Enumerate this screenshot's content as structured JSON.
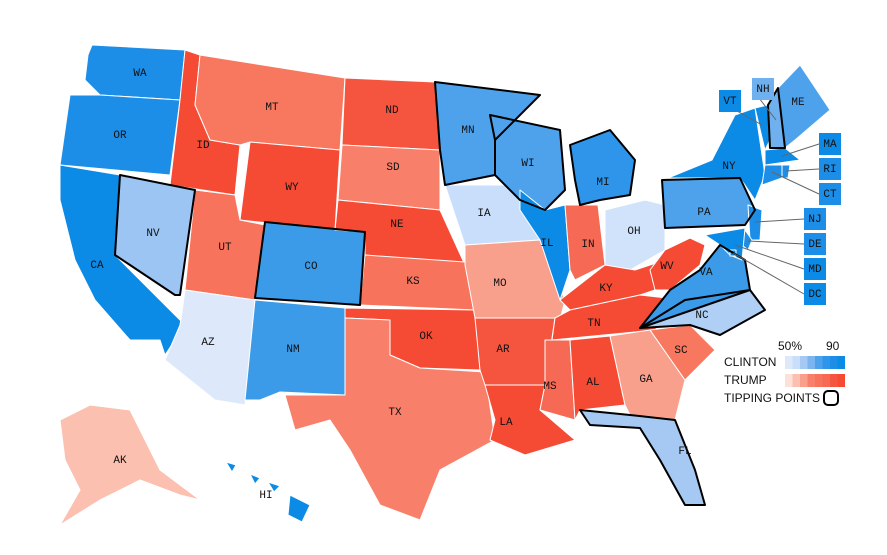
{
  "states": [
    {
      "label": "WA",
      "color": "#1d8ee8",
      "tipping_point": false
    },
    {
      "label": "OR",
      "color": "#1d8ee8",
      "tipping_point": false
    },
    {
      "label": "CA",
      "color": "#0b8ae6",
      "tipping_point": false
    },
    {
      "label": "NV",
      "color": "#9cc5f3",
      "tipping_point": true
    },
    {
      "label": "ID",
      "color": "#f54b35",
      "tipping_point": false
    },
    {
      "label": "MT",
      "color": "#f7775f",
      "tipping_point": false
    },
    {
      "label": "WY",
      "color": "#f54b35",
      "tipping_point": false
    },
    {
      "label": "UT",
      "color": "#f7735c",
      "tipping_point": false
    },
    {
      "label": "CO",
      "color": "#3c9be8",
      "tipping_point": true
    },
    {
      "label": "AZ",
      "color": "#dde9fb",
      "tipping_point": false
    },
    {
      "label": "NM",
      "color": "#3c9be8",
      "tipping_point": false
    },
    {
      "label": "ND",
      "color": "#f5553f",
      "tipping_point": false
    },
    {
      "label": "SD",
      "color": "#f8806a",
      "tipping_point": false
    },
    {
      "label": "NE",
      "color": "#f54b35",
      "tipping_point": false
    },
    {
      "label": "KS",
      "color": "#f7735c",
      "tipping_point": false
    },
    {
      "label": "OK",
      "color": "#f54b35",
      "tipping_point": false
    },
    {
      "label": "TX",
      "color": "#f8806a",
      "tipping_point": false
    },
    {
      "label": "MN",
      "color": "#4ea2ec",
      "tipping_point": true
    },
    {
      "label": "IA",
      "color": "#c8defa",
      "tipping_point": false
    },
    {
      "label": "MO",
      "color": "#f9a08d",
      "tipping_point": false
    },
    {
      "label": "AR",
      "color": "#f5553f",
      "tipping_point": false
    },
    {
      "label": "LA",
      "color": "#f54b35",
      "tipping_point": false
    },
    {
      "label": "WI",
      "color": "#4ea2ec",
      "tipping_point": true
    },
    {
      "label": "IL",
      "color": "#0b8ae6",
      "tipping_point": false
    },
    {
      "label": "MI",
      "color": "#2f95ea",
      "tipping_point": true
    },
    {
      "label": "IN",
      "color": "#f66a55",
      "tipping_point": false
    },
    {
      "label": "OH",
      "color": "#d0e3fa",
      "tipping_point": false
    },
    {
      "label": "KY",
      "color": "#f54b35",
      "tipping_point": false
    },
    {
      "label": "TN",
      "color": "#f54b35",
      "tipping_point": false
    },
    {
      "label": "MS",
      "color": "#f66a55",
      "tipping_point": false
    },
    {
      "label": "AL",
      "color": "#f54b35",
      "tipping_point": false
    },
    {
      "label": "GA",
      "color": "#f9a08d",
      "tipping_point": false
    },
    {
      "label": "FL",
      "color": "#a6c9f3",
      "tipping_point": true
    },
    {
      "label": "SC",
      "color": "#f7775f",
      "tipping_point": false
    },
    {
      "label": "NC",
      "color": "#b0cff5",
      "tipping_point": true
    },
    {
      "label": "VA",
      "color": "#3c9be8",
      "tipping_point": true
    },
    {
      "label": "WV",
      "color": "#f54b35",
      "tipping_point": false
    },
    {
      "label": "PA",
      "color": "#4ea2ec",
      "tipping_point": true
    },
    {
      "label": "NY",
      "color": "#0b8ae6",
      "tipping_point": false
    },
    {
      "label": "NJ",
      "color": "#1d8ee8",
      "tipping_point": false
    },
    {
      "label": "DE",
      "color": "#1d8ee8",
      "tipping_point": false
    },
    {
      "label": "MD",
      "color": "#0b8ae6",
      "tipping_point": false
    },
    {
      "label": "DC",
      "color": "#0b8ae6",
      "tipping_point": false
    },
    {
      "label": "VT",
      "color": "#0b8ae6",
      "tipping_point": false
    },
    {
      "label": "NH",
      "color": "#6fb1ef",
      "tipping_point": true
    },
    {
      "label": "ME",
      "color": "#4ea2ec",
      "tipping_point": false
    },
    {
      "label": "MA",
      "color": "#0b8ae6",
      "tipping_point": false
    },
    {
      "label": "RI",
      "color": "#1d8ee8",
      "tipping_point": false
    },
    {
      "label": "CT",
      "color": "#1d8ee8",
      "tipping_point": false
    },
    {
      "label": "AK",
      "color": "#fbc0b0",
      "tipping_point": false
    },
    {
      "label": "HI",
      "color": "#0b8ae6",
      "tipping_point": false
    }
  ],
  "legend": {
    "scale_low": "50%",
    "scale_high": "90",
    "clinton": "CLINTON",
    "trump": "TRUMP",
    "tipping_points": "TIPPING POINTS",
    "clinton_colors": [
      "#dde9fb",
      "#c8defa",
      "#a6c9f3",
      "#7ab5f0",
      "#4ea2ec",
      "#2f95ea",
      "#1d8ee8",
      "#0b8ae6"
    ],
    "trump_colors": [
      "#fde0d8",
      "#fbc0b0",
      "#f9a08d",
      "#f8806a",
      "#f7735c",
      "#f66a55",
      "#f5553f",
      "#f54b35"
    ]
  }
}
